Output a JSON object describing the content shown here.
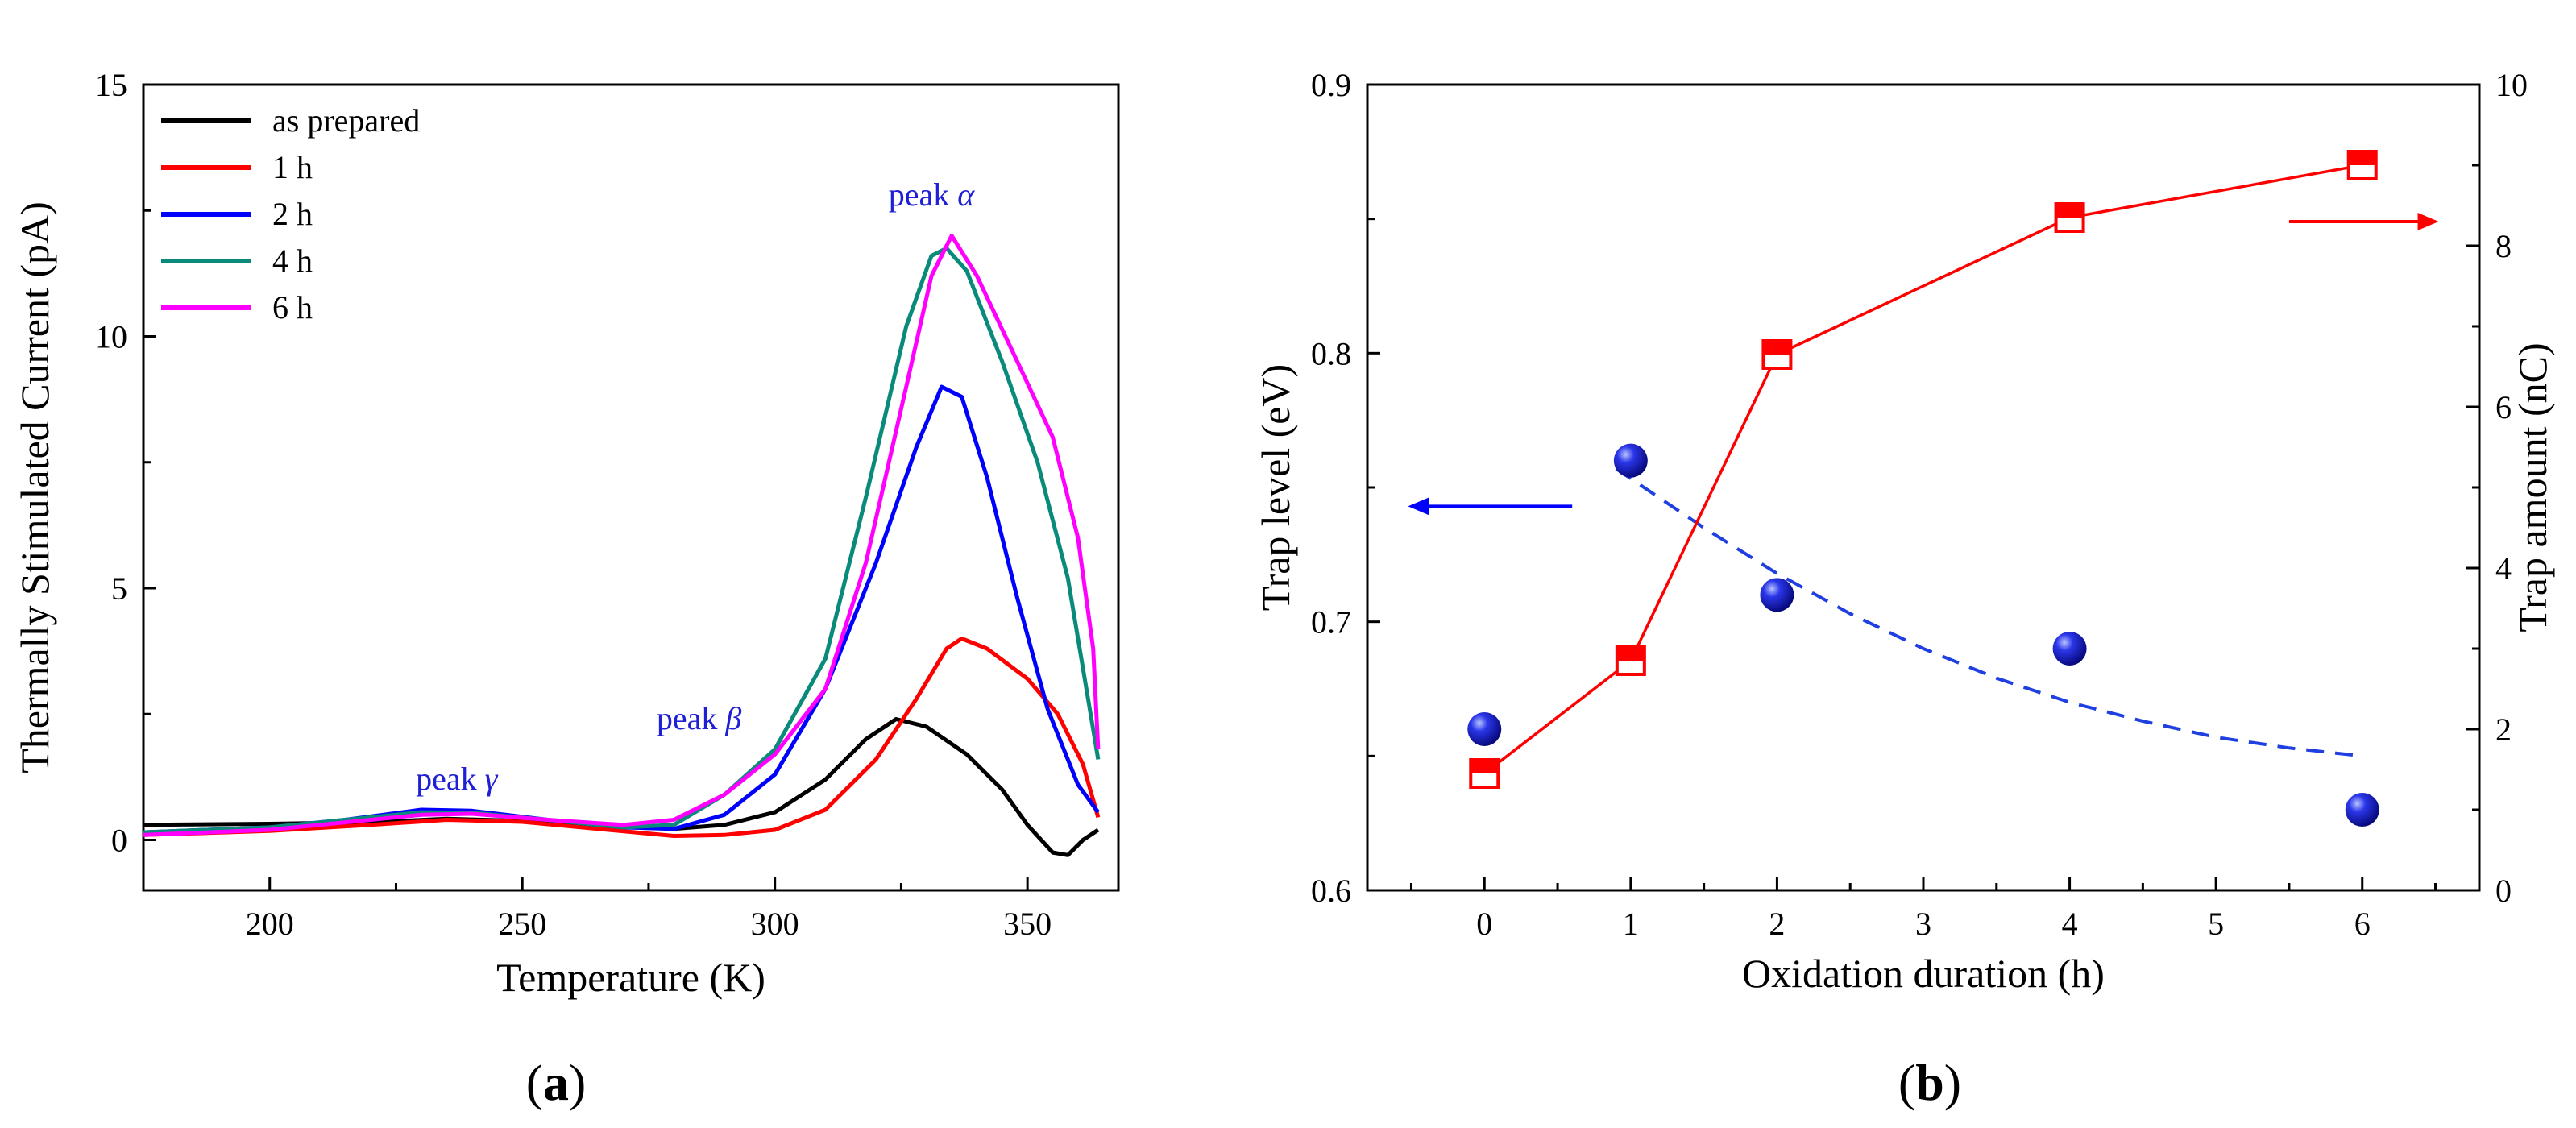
{
  "chart_data": [
    {
      "panel": "a",
      "type": "line",
      "title": "",
      "xlabel": "Temperature (K)",
      "ylabel": "Thermally Stimulated Current (pA)",
      "xlim": [
        175,
        368
      ],
      "ylim": [
        -1,
        15
      ],
      "xticks": [
        200,
        250,
        300,
        350
      ],
      "yticks": [
        0,
        5,
        10,
        15
      ],
      "grid": false,
      "legend_position": "top-left",
      "series": [
        {
          "name": "as prepared",
          "color": "#000000",
          "points": [
            [
              175,
              0.3
            ],
            [
              200,
              0.32
            ],
            [
              220,
              0.35
            ],
            [
              235,
              0.42
            ],
            [
              250,
              0.38
            ],
            [
              265,
              0.28
            ],
            [
              280,
              0.22
            ],
            [
              290,
              0.3
            ],
            [
              300,
              0.55
            ],
            [
              310,
              1.2
            ],
            [
              318,
              2.0
            ],
            [
              324,
              2.4
            ],
            [
              330,
              2.25
            ],
            [
              338,
              1.7
            ],
            [
              345,
              1.0
            ],
            [
              350,
              0.3
            ],
            [
              355,
              -0.25
            ],
            [
              358,
              -0.3
            ],
            [
              361,
              0.0
            ],
            [
              364,
              0.2
            ]
          ]
        },
        {
          "name": "1 h",
          "color": "#ff0000",
          "points": [
            [
              175,
              0.1
            ],
            [
              200,
              0.18
            ],
            [
              220,
              0.3
            ],
            [
              235,
              0.4
            ],
            [
              250,
              0.36
            ],
            [
              265,
              0.22
            ],
            [
              280,
              0.08
            ],
            [
              290,
              0.1
            ],
            [
              300,
              0.2
            ],
            [
              310,
              0.6
            ],
            [
              320,
              1.6
            ],
            [
              328,
              2.8
            ],
            [
              334,
              3.8
            ],
            [
              337,
              4.0
            ],
            [
              342,
              3.8
            ],
            [
              350,
              3.2
            ],
            [
              356,
              2.5
            ],
            [
              361,
              1.5
            ],
            [
              364,
              0.45
            ]
          ]
        },
        {
          "name": "2 h",
          "color": "#0000ff",
          "points": [
            [
              175,
              0.15
            ],
            [
              200,
              0.25
            ],
            [
              215,
              0.4
            ],
            [
              230,
              0.6
            ],
            [
              240,
              0.58
            ],
            [
              255,
              0.4
            ],
            [
              270,
              0.25
            ],
            [
              280,
              0.22
            ],
            [
              290,
              0.5
            ],
            [
              300,
              1.3
            ],
            [
              310,
              3.0
            ],
            [
              320,
              5.5
            ],
            [
              328,
              7.8
            ],
            [
              333,
              9.0
            ],
            [
              337,
              8.8
            ],
            [
              342,
              7.2
            ],
            [
              348,
              4.8
            ],
            [
              354,
              2.6
            ],
            [
              360,
              1.1
            ],
            [
              364,
              0.55
            ]
          ]
        },
        {
          "name": "4 h",
          "color": "#0a8a7a",
          "points": [
            [
              175,
              0.15
            ],
            [
              200,
              0.25
            ],
            [
              215,
              0.4
            ],
            [
              230,
              0.55
            ],
            [
              240,
              0.54
            ],
            [
              255,
              0.4
            ],
            [
              270,
              0.25
            ],
            [
              280,
              0.3
            ],
            [
              290,
              0.9
            ],
            [
              300,
              1.8
            ],
            [
              310,
              3.6
            ],
            [
              318,
              6.8
            ],
            [
              326,
              10.2
            ],
            [
              331,
              11.6
            ],
            [
              334,
              11.75
            ],
            [
              338,
              11.3
            ],
            [
              345,
              9.5
            ],
            [
              352,
              7.5
            ],
            [
              358,
              5.2
            ],
            [
              362,
              2.8
            ],
            [
              364,
              1.6
            ]
          ]
        },
        {
          "name": "6 h",
          "color": "#ff00ff",
          "points": [
            [
              175,
              0.1
            ],
            [
              200,
              0.2
            ],
            [
              215,
              0.35
            ],
            [
              230,
              0.5
            ],
            [
              240,
              0.52
            ],
            [
              255,
              0.4
            ],
            [
              270,
              0.3
            ],
            [
              280,
              0.4
            ],
            [
              290,
              0.9
            ],
            [
              300,
              1.7
            ],
            [
              310,
              3.0
            ],
            [
              318,
              5.5
            ],
            [
              326,
              9.0
            ],
            [
              331,
              11.2
            ],
            [
              335,
              12.0
            ],
            [
              340,
              11.2
            ],
            [
              348,
              9.5
            ],
            [
              355,
              8.0
            ],
            [
              360,
              6.0
            ],
            [
              363,
              3.8
            ],
            [
              364,
              1.8
            ]
          ]
        }
      ],
      "annotations": [
        {
          "text": "peak γ",
          "x": 237,
          "y": 1.0
        },
        {
          "text": "peak β",
          "x": 285,
          "y": 2.2
        },
        {
          "text": "peak α",
          "x": 331,
          "y": 12.6
        }
      ]
    },
    {
      "panel": "b",
      "type": "scatter",
      "title": "",
      "xlabel": "Oxidation duration (h)",
      "ylabel": "Trap level (eV)",
      "ylabel_right": "Trap amount (nC)",
      "xlim": [
        -0.8,
        6.8
      ],
      "ylim": [
        0.6,
        0.9
      ],
      "ylim_right": [
        0,
        10
      ],
      "xticks": [
        0,
        1,
        2,
        3,
        4,
        5,
        6
      ],
      "yticks": [
        0.6,
        0.7,
        0.8,
        0.9
      ],
      "yticks_right": [
        0,
        2,
        4,
        6,
        8,
        10
      ],
      "grid": false,
      "series": [
        {
          "name": "Trap level",
          "axis": "left",
          "marker": "sphere",
          "color": "#1010e0",
          "x": [
            0,
            1,
            2,
            4,
            6
          ],
          "y": [
            0.66,
            0.76,
            0.71,
            0.69,
            0.63
          ]
        },
        {
          "name": "Trap level fit",
          "axis": "left",
          "style": "dashed",
          "color": "#1f3fe0",
          "x": [
            0.9,
            1.5,
            2.0,
            2.5,
            3.0,
            3.5,
            4.0,
            4.5,
            5.0,
            5.5,
            6.0
          ],
          "y": [
            0.757,
            0.735,
            0.718,
            0.703,
            0.69,
            0.679,
            0.67,
            0.663,
            0.657,
            0.653,
            0.65
          ]
        },
        {
          "name": "Trap amount",
          "axis": "right",
          "marker": "half-filled-square",
          "color": "#ff0000",
          "x": [
            0,
            1,
            2,
            4,
            6
          ],
          "y": [
            1.45,
            2.85,
            6.65,
            8.35,
            9.0
          ]
        }
      ],
      "arrows": [
        {
          "points_to": "left",
          "color": "#0000ff",
          "x": [
            0.6,
            -0.5
          ],
          "y": 0.743
        },
        {
          "points_to": "right",
          "color": "#ff0000",
          "x": [
            5.5,
            6.5
          ],
          "y": 8.3
        }
      ]
    }
  ],
  "panel_labels": {
    "a": "(a)",
    "b": "(b)"
  }
}
